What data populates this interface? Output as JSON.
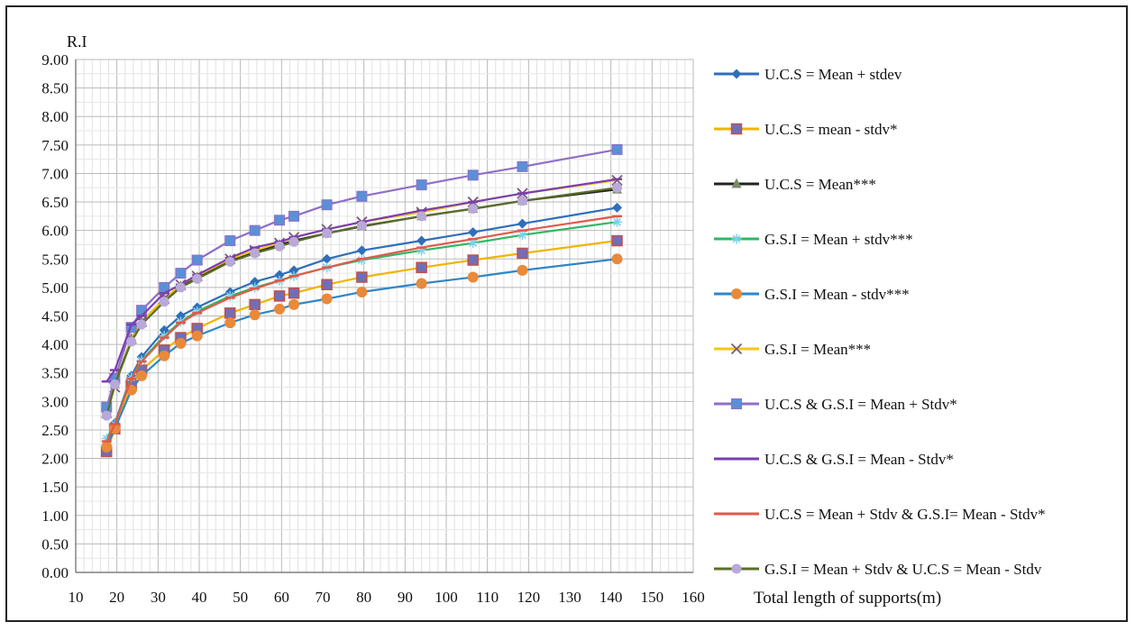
{
  "chart_data": {
    "type": "line",
    "ylabel": "R.I",
    "xlabel": "Total length of supports(m)",
    "xlim": [
      10,
      160
    ],
    "ylim": [
      0,
      9
    ],
    "x_ticks": [
      10,
      20,
      30,
      40,
      50,
      60,
      70,
      80,
      90,
      100,
      110,
      120,
      130,
      140,
      150,
      160
    ],
    "x_tick_labels": [
      "10",
      "20",
      "30",
      "40",
      "50",
      "60",
      "70",
      "80",
      "90",
      "100",
      "110",
      "120",
      "130",
      "140",
      "150",
      "160"
    ],
    "y_ticks": [
      0,
      0.5,
      1,
      1.5,
      2,
      2.5,
      3,
      3.5,
      4,
      4.5,
      5,
      5.5,
      6,
      6.5,
      7,
      7.5,
      8,
      8.5,
      9
    ],
    "y_tick_labels": [
      "0.00",
      "0.50",
      "1.00",
      "1.50",
      "2.00",
      "2.50",
      "3.00",
      "3.50",
      "4.00",
      "4.50",
      "5.00",
      "5.50",
      "6.00",
      "6.50",
      "7.00",
      "7.50",
      "8.00",
      "8.50",
      "9.00"
    ],
    "grid": true,
    "legend_position": "right",
    "x": [
      17.5,
      19.5,
      23.5,
      26,
      31.5,
      35.5,
      39.5,
      47.5,
      53.5,
      59.5,
      63,
      71,
      79.5,
      94,
      106.5,
      118.5,
      141.5
    ],
    "series": [
      {
        "name": "U.C.S = Mean + stdev",
        "color": "#2e6fba",
        "marker": "diamond",
        "values": [
          2.25,
          2.62,
          3.45,
          3.78,
          4.25,
          4.5,
          4.65,
          4.92,
          5.1,
          5.22,
          5.3,
          5.5,
          5.65,
          5.82,
          5.97,
          6.12,
          6.4
        ]
      },
      {
        "name": "U.C.S = mean - stdv*",
        "color": "#f0b400",
        "marker": "square",
        "values": [
          2.12,
          2.52,
          3.28,
          3.55,
          3.9,
          4.12,
          4.28,
          4.55,
          4.7,
          4.85,
          4.9,
          5.05,
          5.18,
          5.35,
          5.48,
          5.6,
          5.82
        ]
      },
      {
        "name": "U.C.S = Mean***",
        "color": "#222222",
        "marker": "triangle",
        "values": [
          2.85,
          3.3,
          4.1,
          4.4,
          4.8,
          5.02,
          5.18,
          5.48,
          5.62,
          5.75,
          5.82,
          5.95,
          6.07,
          6.25,
          6.38,
          6.52,
          6.72
        ]
      },
      {
        "name": "G.S.I = Mean + stdv***",
        "color": "#2fb866",
        "marker": "star",
        "values": [
          2.35,
          2.6,
          3.42,
          3.72,
          4.15,
          4.4,
          4.58,
          4.85,
          5.0,
          5.12,
          5.2,
          5.35,
          5.48,
          5.65,
          5.78,
          5.92,
          6.15
        ]
      },
      {
        "name": "G.S.I = Mean - stdv***",
        "color": "#2e86c8",
        "marker": "circle",
        "values": [
          2.2,
          2.52,
          3.2,
          3.45,
          3.8,
          4.02,
          4.15,
          4.38,
          4.52,
          4.62,
          4.7,
          4.8,
          4.92,
          5.07,
          5.18,
          5.3,
          5.5
        ]
      },
      {
        "name": "G.S.I = Mean***",
        "color": "#f5c518",
        "marker": "x",
        "values": [
          2.8,
          3.25,
          4.1,
          4.4,
          4.8,
          5.05,
          5.2,
          5.5,
          5.65,
          5.78,
          5.88,
          6.02,
          6.15,
          6.32,
          6.5,
          6.65,
          6.88
        ]
      },
      {
        "name": "U.C.S & G.S.I = Mean + Stdv*",
        "color": "#8e6fc8",
        "marker": "square-open",
        "values": [
          2.9,
          3.4,
          4.3,
          4.6,
          5.0,
          5.25,
          5.48,
          5.82,
          6.0,
          6.18,
          6.25,
          6.45,
          6.6,
          6.8,
          6.97,
          7.12,
          7.42
        ]
      },
      {
        "name": "U.C.S & G.S.I = Mean - Stdv*",
        "color": "#7b3fb0",
        "marker": "bar",
        "values": [
          3.35,
          3.55,
          4.35,
          4.5,
          4.9,
          5.05,
          5.22,
          5.52,
          5.7,
          5.8,
          5.88,
          6.02,
          6.15,
          6.35,
          6.5,
          6.65,
          6.9
        ]
      },
      {
        "name": "U.C.S = Mean + Stdv & G.S.I= Mean - Stdv*",
        "color": "#e05a4a",
        "marker": "bar",
        "values": [
          2.3,
          2.6,
          3.4,
          3.7,
          4.12,
          4.38,
          4.55,
          4.82,
          4.98,
          5.12,
          5.2,
          5.35,
          5.5,
          5.7,
          5.85,
          6.0,
          6.25
        ]
      },
      {
        "name": "G.S.I = Mean + Stdv & U.C.S = Mean - Stdv",
        "color": "#5a6e2a",
        "marker": "circle-light",
        "values": [
          2.75,
          3.3,
          4.05,
          4.35,
          4.75,
          5.0,
          5.15,
          5.45,
          5.6,
          5.72,
          5.8,
          5.95,
          6.08,
          6.25,
          6.38,
          6.52,
          6.75
        ]
      }
    ]
  }
}
